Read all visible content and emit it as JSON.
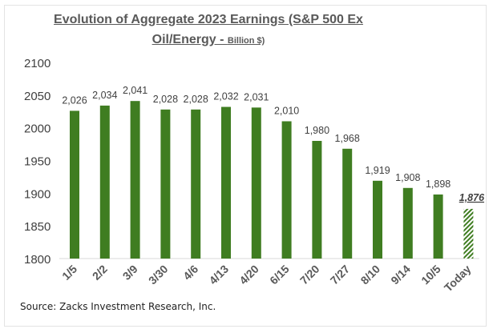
{
  "chart_data": {
    "type": "bar",
    "title": "Evolution of Aggregate 2023 Earnings (S&P 500 Ex",
    "title_line2": "Oil/Energy - ",
    "title_unit": "Billion $)",
    "categories": [
      "1/5",
      "2/2",
      "3/9",
      "3/30",
      "4/6",
      "4/13",
      "4/20",
      "6/15",
      "7/20",
      "7/27",
      "8/10",
      "9/14",
      "10/5",
      "Today"
    ],
    "values": [
      2026,
      2034,
      2041,
      2028,
      2028,
      2032,
      2031,
      2010,
      1980,
      1968,
      1919,
      1908,
      1898,
      1876
    ],
    "data_labels": [
      "2,026",
      "2,034",
      "2,041",
      "2,028",
      "2,028",
      "2,032",
      "2,031",
      "2,010",
      "1,980",
      "1,968",
      "1,919",
      "1,908",
      "1,898",
      "1,876"
    ],
    "ylim": [
      1800,
      2100
    ],
    "yticks": [
      1800,
      1850,
      1900,
      1950,
      2000,
      2050,
      2100
    ],
    "grid": false,
    "bar_color": "#3f7d21",
    "highlight": {
      "category": "Today",
      "style": "hatched",
      "label_style": "bold italic underlined"
    },
    "xlabel": "",
    "ylabel": ""
  },
  "source": "Source: Zacks Investment Research, Inc."
}
